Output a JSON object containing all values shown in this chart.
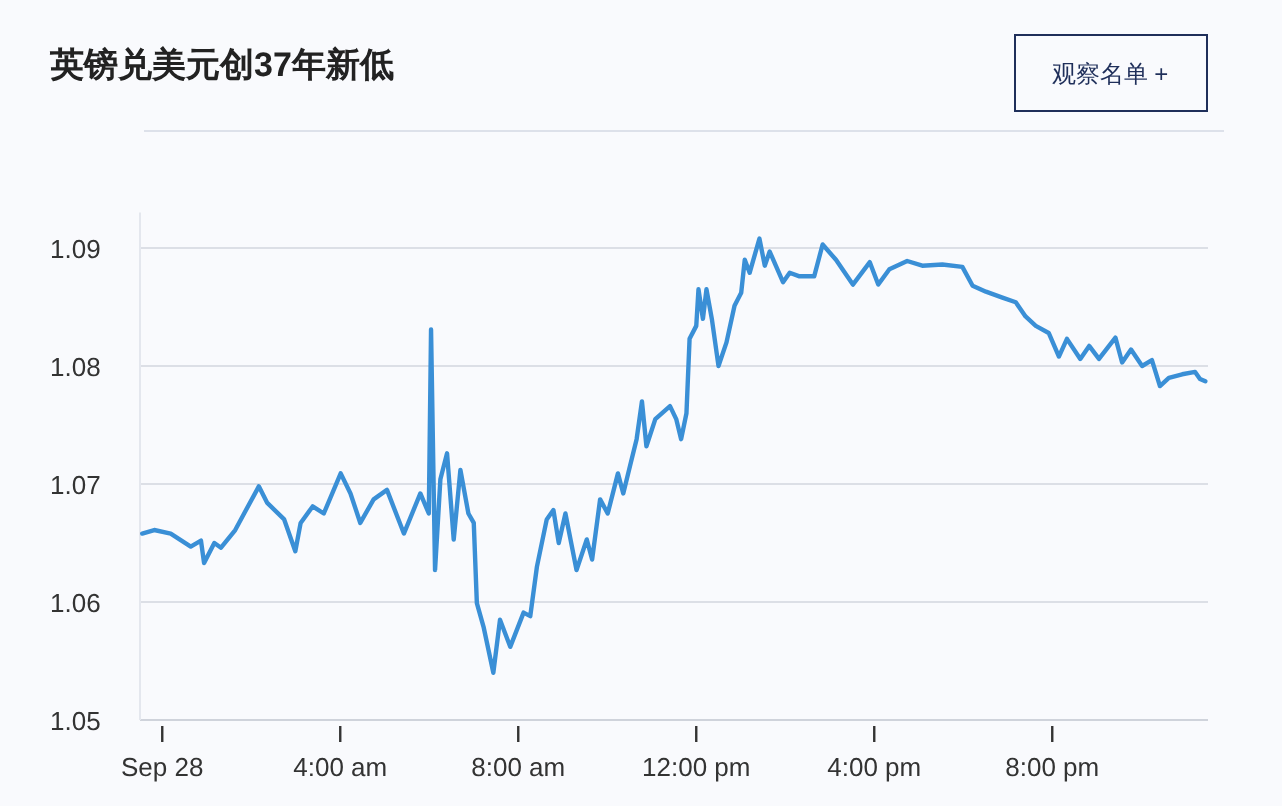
{
  "chart_data": {
    "type": "line",
    "title": "英镑兑美元创37年新低",
    "annotations": [
      "观察名单 +"
    ],
    "x": [
      -0.45,
      -0.18,
      0.19,
      0.64,
      0.87,
      0.94,
      1.17,
      1.32,
      1.64,
      1.84,
      2.17,
      2.36,
      2.74,
      2.99,
      3.11,
      3.38,
      3.63,
      4.01,
      4.23,
      4.45,
      4.75,
      5.05,
      5.43,
      5.8,
      5.99,
      6.04,
      6.13,
      6.25,
      6.4,
      6.55,
      6.7,
      6.88,
      7.0,
      7.07,
      7.22,
      7.44,
      7.59,
      7.82,
      8.12,
      8.27,
      8.42,
      8.64,
      8.79,
      8.91,
      9.06,
      9.31,
      9.54,
      9.66,
      9.84,
      10.01,
      10.24,
      10.36,
      10.51,
      10.66,
      10.78,
      10.88,
      11.08,
      11.41,
      11.55,
      11.66,
      11.78,
      11.85,
      12.0,
      12.05,
      12.15,
      12.23,
      12.35,
      12.5,
      12.68,
      12.86,
      13.01,
      13.09,
      13.2,
      13.42,
      13.54,
      13.65,
      13.95,
      14.1,
      14.32,
      14.65,
      14.84,
      15.14,
      15.52,
      15.9,
      16.09,
      16.34,
      16.74,
      17.08,
      17.53,
      17.98,
      18.21,
      18.51,
      18.88,
      19.18,
      19.4,
      19.63,
      19.92,
      20.15,
      20.33,
      20.63,
      20.83,
      21.05,
      21.42,
      21.57,
      21.77,
      22.02,
      22.24,
      22.42,
      22.62,
      22.92,
      23.21,
      23.32,
      23.44
    ],
    "series": [
      {
        "color": "#3a8fd6",
        "values": [
          1.0658,
          1.0661,
          1.0658,
          1.0647,
          1.0652,
          1.0633,
          1.065,
          1.0646,
          1.0661,
          1.0675,
          1.0698,
          1.0684,
          1.067,
          1.0643,
          1.0667,
          1.0681,
          1.0675,
          1.0709,
          1.0692,
          1.0667,
          1.0687,
          1.0695,
          1.0658,
          1.0692,
          1.0675,
          1.0831,
          1.0627,
          1.0704,
          1.0726,
          1.0653,
          1.0712,
          1.0675,
          1.0667,
          1.0599,
          1.0579,
          1.054,
          1.0585,
          1.0562,
          1.0591,
          1.0588,
          1.063,
          1.067,
          1.0678,
          1.065,
          1.0675,
          1.0627,
          1.0653,
          1.0636,
          1.0687,
          1.0675,
          1.0709,
          1.0692,
          1.0715,
          1.0738,
          1.077,
          1.0732,
          1.0755,
          1.0766,
          1.0755,
          1.0738,
          1.076,
          1.0823,
          1.0834,
          1.0865,
          1.084,
          1.0865,
          1.084,
          1.08,
          1.082,
          1.0851,
          1.0862,
          1.089,
          1.0879,
          1.0908,
          1.0885,
          1.0897,
          1.0871,
          1.0879,
          1.0876,
          1.0876,
          1.0903,
          1.089,
          1.0869,
          1.0888,
          1.0869,
          1.0882,
          1.0889,
          1.0885,
          1.0886,
          1.0884,
          1.0868,
          1.0863,
          1.0858,
          1.0854,
          1.0842,
          1.0834,
          1.0828,
          1.0808,
          1.0823,
          1.0806,
          1.0817,
          1.0806,
          1.0824,
          1.0803,
          1.0814,
          1.08,
          1.0805,
          1.0783,
          1.079,
          1.0793,
          1.0795,
          1.0789,
          1.0787
        ]
      }
    ],
    "xlim": [
      -0.5,
      23.5
    ],
    "xticks": [
      {
        "value": 0,
        "label": "Sep 28"
      },
      {
        "value": 4,
        "label": "4:00 am"
      },
      {
        "value": 8,
        "label": "8:00 am"
      },
      {
        "value": 12,
        "label": "12:00 pm"
      },
      {
        "value": 16,
        "label": "4:00 pm"
      },
      {
        "value": 20,
        "label": "8:00 pm"
      }
    ],
    "ylim": [
      1.05,
      1.093
    ],
    "yticks": [
      1.05,
      1.06,
      1.07,
      1.08,
      1.09
    ],
    "grid": "y",
    "marker": "none",
    "line_style": "solid"
  }
}
